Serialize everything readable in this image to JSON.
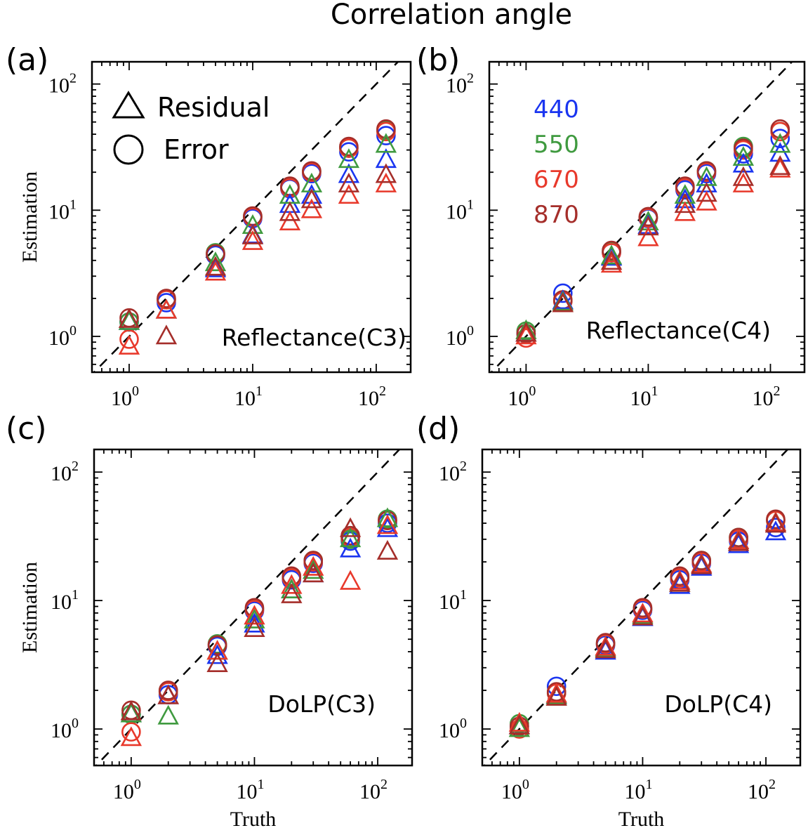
{
  "title": "Correlation angle",
  "colors": {
    "440": "#1a35f0",
    "550": "#3f9a3f",
    "670": "#e8392b",
    "870": "#a52e2a"
  },
  "marker_legend": [
    {
      "marker": "triangle",
      "label": "Residual"
    },
    {
      "marker": "circle",
      "label": "Error"
    }
  ],
  "color_legend": [
    "440",
    "550",
    "670",
    "870"
  ],
  "chart_data": [
    {
      "type": "scatter",
      "panel_label": "(a)",
      "annotation": "Reflectance(C3)",
      "xlabel": "",
      "ylabel": "Estimation",
      "xscale": "log",
      "yscale": "log",
      "xlim": [
        0.5,
        190
      ],
      "ylim": [
        0.52,
        150
      ],
      "reference_line": "y = x (dashed)",
      "x": [
        1,
        2,
        5,
        10,
        20,
        30,
        60,
        120
      ],
      "series": [
        {
          "name": "440 Error",
          "wavelength": "440",
          "marker": "circle",
          "values": [
            1.3,
            1.85,
            4.4,
            8.6,
            14.8,
            19.5,
            29,
            39
          ]
        },
        {
          "name": "550 Error",
          "wavelength": "550",
          "marker": "circle",
          "values": [
            1.3,
            1.95,
            4.6,
            8.9,
            15.2,
            20.3,
            31,
            43
          ]
        },
        {
          "name": "670 Error",
          "wavelength": "670",
          "marker": "circle",
          "values": [
            0.95,
            1.95,
            4.5,
            8.8,
            15,
            20,
            31,
            42
          ]
        },
        {
          "name": "870 Error",
          "wavelength": "870",
          "marker": "circle",
          "values": [
            1.4,
            2.0,
            4.5,
            9.0,
            15.5,
            20.5,
            32,
            44
          ]
        },
        {
          "name": "440 Residual",
          "wavelength": "440",
          "marker": "triangle",
          "values": [
            1.3,
            1.6,
            3.4,
            6.3,
            11,
            13,
            19,
            25
          ]
        },
        {
          "name": "550 Residual",
          "wavelength": "550",
          "marker": "triangle",
          "values": [
            1.3,
            1.6,
            3.8,
            7.5,
            13,
            16,
            25,
            33
          ]
        },
        {
          "name": "670 Residual",
          "wavelength": "670",
          "marker": "triangle",
          "values": [
            0.83,
            1.6,
            3.2,
            5.6,
            8,
            10,
            13,
            16
          ]
        },
        {
          "name": "870 Residual",
          "wavelength": "870",
          "marker": "triangle",
          "values": [
            1.35,
            1.0,
            3.5,
            6.2,
            9.5,
            12,
            16,
            19
          ]
        }
      ]
    },
    {
      "type": "scatter",
      "panel_label": "(b)",
      "annotation": "Reflectance(C4)",
      "xlabel": "",
      "ylabel": "",
      "xscale": "log",
      "yscale": "log",
      "xlim": [
        0.5,
        190
      ],
      "ylim": [
        0.52,
        150
      ],
      "reference_line": "y = x (dashed)",
      "x": [
        1,
        2,
        5,
        10,
        20,
        30,
        60,
        120
      ],
      "series": [
        {
          "name": "440 Error",
          "wavelength": "440",
          "marker": "circle",
          "values": [
            1.05,
            2.2,
            4.6,
            8.6,
            14.5,
            19.5,
            28,
            37
          ]
        },
        {
          "name": "550 Error",
          "wavelength": "550",
          "marker": "circle",
          "values": [
            1.1,
            1.9,
            4.7,
            8.7,
            15,
            20.5,
            32,
            42
          ]
        },
        {
          "name": "670 Error",
          "wavelength": "670",
          "marker": "circle",
          "values": [
            0.97,
            1.9,
            4.6,
            8.7,
            15,
            20,
            30,
            42
          ]
        },
        {
          "name": "870 Error",
          "wavelength": "870",
          "marker": "circle",
          "values": [
            1.05,
            1.95,
            4.8,
            8.9,
            15.5,
            20.5,
            31,
            44
          ]
        },
        {
          "name": "440 Residual",
          "wavelength": "440",
          "marker": "triangle",
          "values": [
            1.05,
            1.9,
            4.2,
            7.5,
            12,
            16,
            23,
            28
          ]
        },
        {
          "name": "550 Residual",
          "wavelength": "550",
          "marker": "triangle",
          "values": [
            1.1,
            1.85,
            4.3,
            8,
            13,
            18,
            26,
            33
          ]
        },
        {
          "name": "670 Residual",
          "wavelength": "670",
          "marker": "triangle",
          "values": [
            1.0,
            1.8,
            3.7,
            6,
            9.5,
            11.5,
            16,
            21
          ]
        },
        {
          "name": "870 Residual",
          "wavelength": "870",
          "marker": "triangle",
          "values": [
            1.05,
            1.8,
            3.9,
            7.3,
            11,
            13.5,
            18,
            22
          ]
        }
      ]
    },
    {
      "type": "scatter",
      "panel_label": "(c)",
      "annotation": "DoLP(C3)",
      "xlabel": "Truth",
      "ylabel": "Estimation",
      "xscale": "log",
      "yscale": "log",
      "xlim": [
        0.5,
        190
      ],
      "ylim": [
        0.52,
        150
      ],
      "reference_line": "y = x (dashed)",
      "x": [
        1,
        2,
        5,
        10,
        20,
        30,
        60,
        120
      ],
      "series": [
        {
          "name": "440 Error",
          "wavelength": "440",
          "marker": "circle",
          "values": [
            1.3,
            1.85,
            4.4,
            8.3,
            14.5,
            19.5,
            29,
            40
          ]
        },
        {
          "name": "550 Error",
          "wavelength": "550",
          "marker": "circle",
          "values": [
            1.3,
            1.95,
            4.6,
            8.6,
            15,
            20.5,
            30,
            43
          ]
        },
        {
          "name": "670 Error",
          "wavelength": "670",
          "marker": "circle",
          "values": [
            0.95,
            1.95,
            4.5,
            8.5,
            15,
            20,
            31,
            42
          ]
        },
        {
          "name": "870 Error",
          "wavelength": "870",
          "marker": "circle",
          "values": [
            1.4,
            2.0,
            4.5,
            8.8,
            15.5,
            20.5,
            32,
            42
          ]
        },
        {
          "name": "440 Residual",
          "wavelength": "440",
          "marker": "triangle",
          "values": [
            1.3,
            1.8,
            3.7,
            6.5,
            12,
            16,
            25,
            36
          ]
        },
        {
          "name": "550 Residual",
          "wavelength": "550",
          "marker": "triangle",
          "values": [
            1.3,
            1.25,
            4.0,
            7.0,
            12,
            17,
            30,
            43
          ]
        },
        {
          "name": "670 Residual",
          "wavelength": "670",
          "marker": "triangle",
          "values": [
            0.85,
            1.8,
            4.0,
            7.5,
            13,
            18,
            14,
            38
          ]
        },
        {
          "name": "870 Residual",
          "wavelength": "870",
          "marker": "triangle",
          "values": [
            1.35,
            1.8,
            3.2,
            6.0,
            11,
            16,
            36,
            24
          ]
        }
      ]
    },
    {
      "type": "scatter",
      "panel_label": "(d)",
      "annotation": "DoLP(C4)",
      "xlabel": "Truth",
      "ylabel": "",
      "xscale": "log",
      "yscale": "log",
      "xlim": [
        0.5,
        190
      ],
      "ylim": [
        0.52,
        150
      ],
      "reference_line": "y = x (dashed)",
      "x": [
        1,
        2,
        5,
        10,
        20,
        30,
        60,
        120
      ],
      "series": [
        {
          "name": "440 Error",
          "wavelength": "440",
          "marker": "circle",
          "values": [
            1.05,
            2.15,
            4.5,
            8.4,
            14.5,
            19.5,
            29,
            37
          ]
        },
        {
          "name": "550 Error",
          "wavelength": "550",
          "marker": "circle",
          "values": [
            1.1,
            1.9,
            4.6,
            8.6,
            15,
            20.5,
            31,
            42
          ]
        },
        {
          "name": "670 Error",
          "wavelength": "670",
          "marker": "circle",
          "values": [
            1.0,
            1.9,
            4.6,
            8.6,
            15,
            20,
            30,
            42
          ]
        },
        {
          "name": "870 Error",
          "wavelength": "870",
          "marker": "circle",
          "values": [
            1.05,
            1.95,
            4.7,
            8.8,
            15.5,
            20.5,
            31,
            43
          ]
        },
        {
          "name": "440 Residual",
          "wavelength": "440",
          "marker": "triangle",
          "values": [
            1.05,
            1.8,
            4.0,
            7.3,
            13,
            18,
            27,
            34
          ]
        },
        {
          "name": "550 Residual",
          "wavelength": "550",
          "marker": "triangle",
          "values": [
            1.0,
            1.8,
            4.2,
            7.6,
            13.5,
            18.5,
            29,
            40
          ]
        },
        {
          "name": "670 Residual",
          "wavelength": "670",
          "marker": "triangle",
          "values": [
            1.1,
            1.85,
            4.3,
            7.8,
            14,
            19,
            29,
            40
          ]
        },
        {
          "name": "870 Residual",
          "wavelength": "870",
          "marker": "triangle",
          "values": [
            1.05,
            1.75,
            4.1,
            7.4,
            13.5,
            18.5,
            28,
            39
          ]
        }
      ]
    }
  ]
}
